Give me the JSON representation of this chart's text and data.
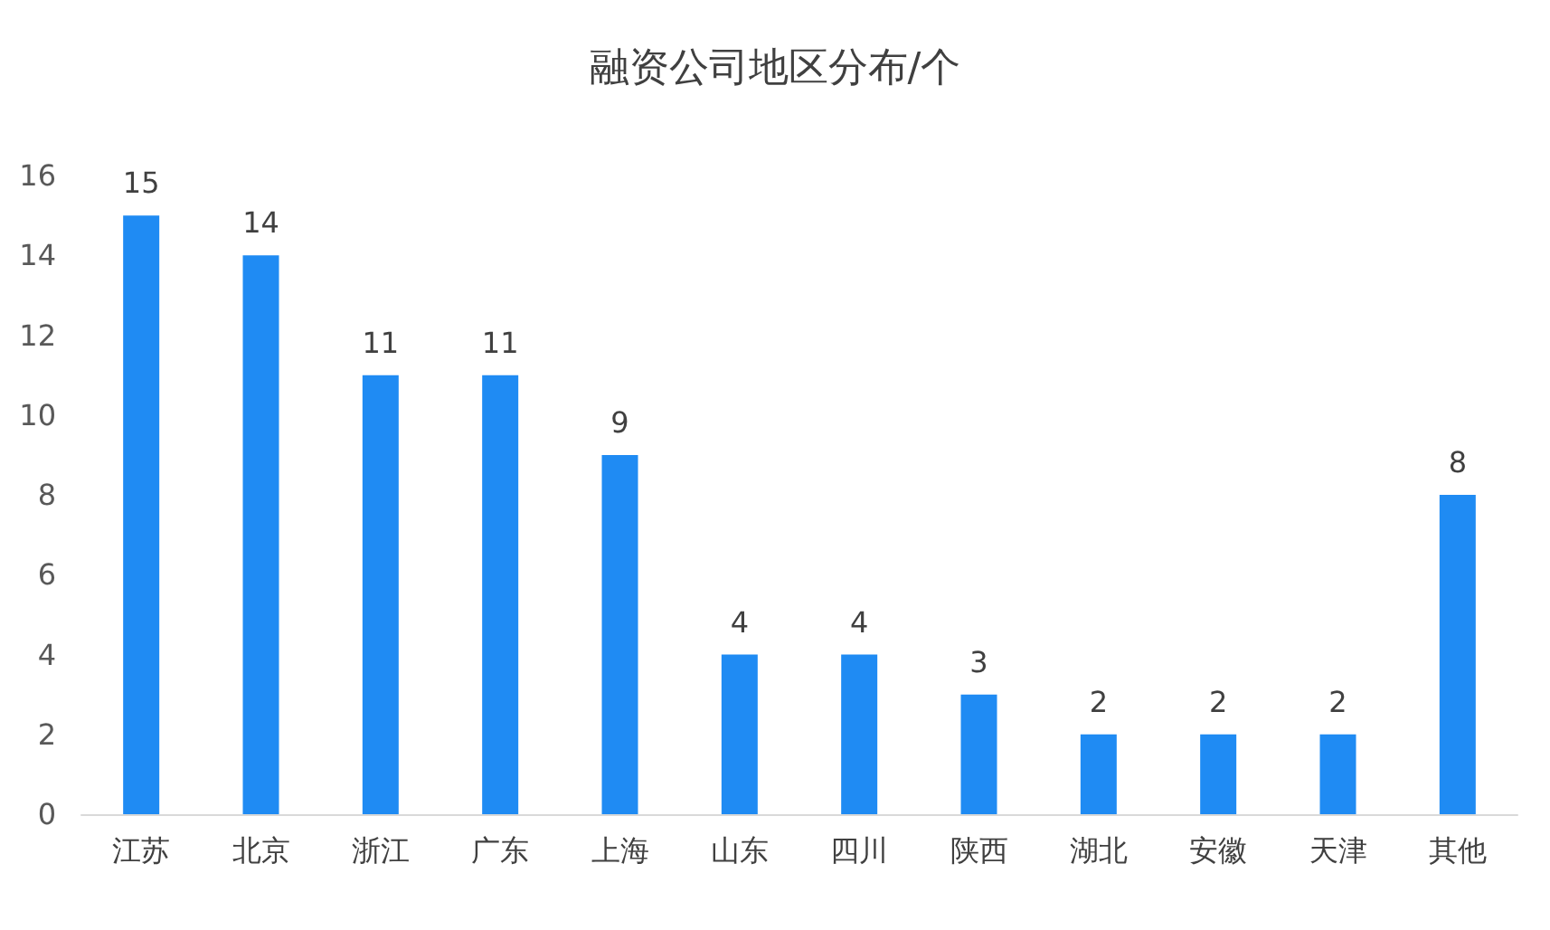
{
  "chart_data": {
    "type": "bar",
    "title": "融资公司地区分布/个",
    "categories": [
      "江苏",
      "北京",
      "浙江",
      "广东",
      "上海",
      "山东",
      "四川",
      "陕西",
      "湖北",
      "安徽",
      "天津",
      "其他"
    ],
    "values": [
      15,
      14,
      11,
      11,
      9,
      4,
      4,
      3,
      2,
      2,
      2,
      8
    ],
    "color": "#1f8bf3",
    "ylim": [
      0,
      16
    ],
    "yticks": [
      0,
      2,
      4,
      6,
      8,
      10,
      12,
      14,
      16
    ],
    "grid": false,
    "data_labels": true
  }
}
